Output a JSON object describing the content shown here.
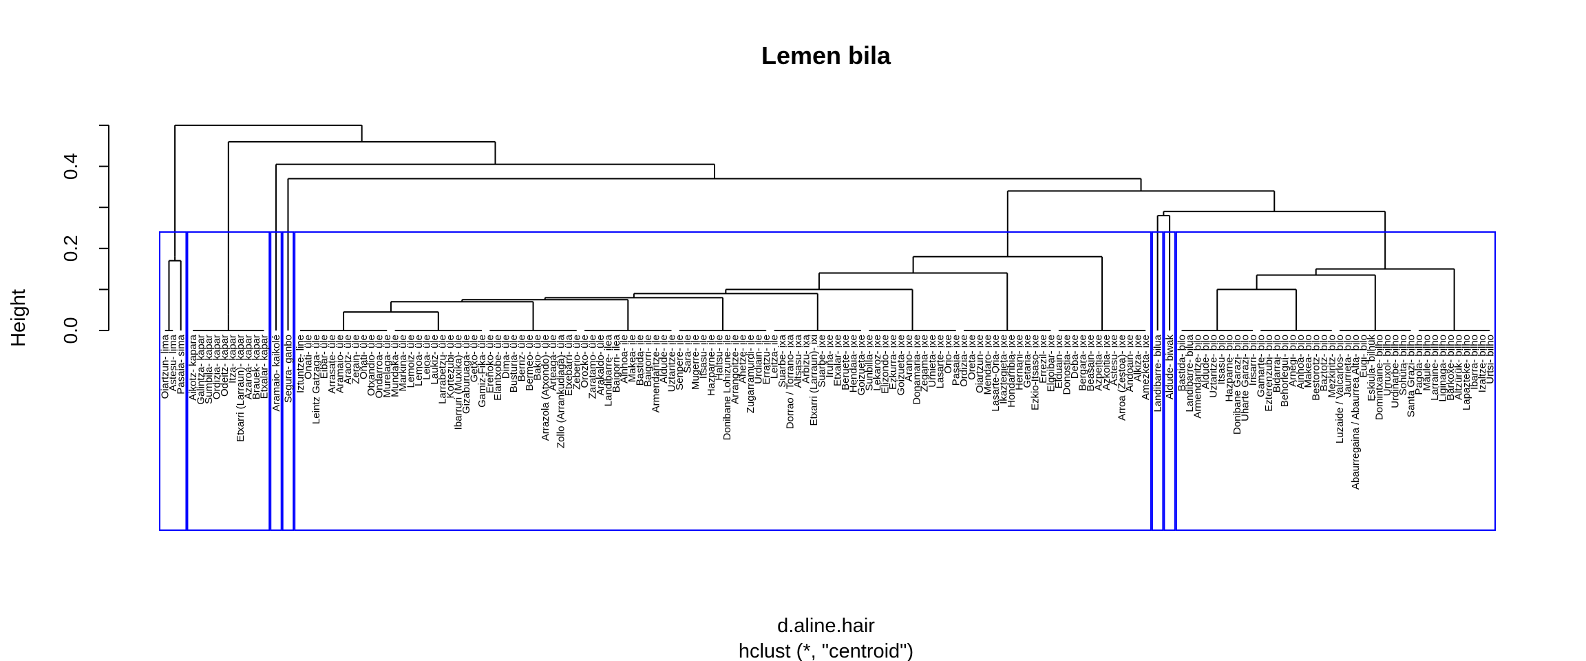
{
  "chart_data": {
    "type": "dendrogram",
    "title": "Lemen bila",
    "xlabel": "d.aline.hair",
    "sublabel": "hclust (*, \"centroid\")",
    "ylabel": "Height",
    "ylim": [
      0,
      0.5
    ],
    "yticks": [
      0.0,
      0.1,
      0.2,
      0.3,
      0.4,
      0.5
    ],
    "ytick_labels": [
      "0.0",
      "",
      "0.2",
      "",
      "0.4",
      ""
    ],
    "cut_height": 0.24,
    "colors": {
      "tree": "#000000",
      "boxes": "#0000ff"
    },
    "groups": [
      {
        "labels": [
          "Oiartzun- lima",
          "Astesu- lima",
          "Pasaia- sima"
        ],
        "merges": [
          0.17,
          0.18
        ]
      },
      {
        "labels": [
          "Aikotz- kapara",
          "Galintza- kapar",
          "Sumbila- kapar",
          "Ordizia- kapar",
          "Odeitz- kapar",
          "Itza- kapar",
          "Etxarri (Larraun)- kapar",
          "Azaroa- kapar",
          "Brauek- kapar",
          "Etxalar- kapar"
        ],
        "merges": [
          0.04
        ]
      },
      {
        "labels": [
          "Aramaio- kaikolé"
        ],
        "merges": []
      },
      {
        "labels": [
          "Segura- ganbo"
        ],
        "merges": []
      },
      {
        "labels": [
          "Iztuntze- line",
          "Onati- üle",
          "Leintz Gatzaga- üle",
          "Eibar- üle",
          "Arrasate- üle",
          "Aramaio- üle",
          "Araotz- üle",
          "Zerain- üle",
          "Oñati- üle",
          "Otxandio- üle",
          "Ondarroa- üle",
          "Murelaga- üle",
          "Mundaka- üle",
          "Markina- üle",
          "Lemoiz- üle",
          "Lemoa- üle",
          "Leioa- üle",
          "Laukiz- üle",
          "Larrabetzu- üle",
          "Kortezubi- üle",
          "Ibarruri (Muxika)- üle",
          "Gizaburuaga- üle",
          "Getxo- üle",
          "Gamiz-Fika- üle",
          "Ereñoko- üle",
          "Elantxobe- üle",
          "Dima- üle",
          "Busturia- üle",
          "Berriz- üle",
          "Bermeo- üle",
          "Bakio- üle",
          "Arrazola (Atxondo)- üle",
          "Arteaga- üle",
          "Zollo (Arrankudiaga)- üla",
          "Etxebarri- üla",
          "Zeberio- üle",
          "Orozko- üle",
          "Zaratamo- üle",
          "Arakaldo- üle",
          "Landibarre- ilea",
          "Baigorri- ilea",
          "Ainhoa- ile",
          "Makea- ile",
          "Bastida- ile",
          "Baigorri- ile",
          "Armendaritze- ile",
          "Aldude- ile",
          "Uztaritze- ile",
          "Senpere- ile",
          "Sara- ile",
          "Mugerre- ile",
          "Itsasu- ile",
          "Hazparne- ile",
          "Haltsu- ile",
          "Donibane Lohizune- ile",
          "Arrangoitze- ile",
          "Ahetze- ile",
          "Zugarramurdi- ile",
          "Urdiain- ile",
          "Erratzu- ile",
          "Leitza- ile",
          "Suarbe- ixa",
          "Dorrao / Torrano- ixa",
          "Altsasu- ixa",
          "Arbizu- ixa",
          "Etxarri (Larraun)- ixi",
          "Suarbe- ixe",
          "Iruña- ixe",
          "Etxalar- ixe",
          "Beruete- ixe",
          "Hendaia- ixe",
          "Goizueta- ixe",
          "Sunbilla- ixe",
          "Lekaroz- ixe",
          "Elizondo- ixe",
          "Ezkurra- ixe",
          "Goizueta- ixe",
          "Arano- ixe",
          "Donamaria- ixe",
          "Zegama- ixe",
          "Urnieta- ixe",
          "Lasarte- ixe",
          "Orio- ixe",
          "Pasaia- ixe",
          "Ordizia- ixe",
          "Oreta- ixe",
          "Oiartzun- ixe",
          "Mendaro- ixe",
          "Lasarte-Oria- ixe",
          "Ikaztegieta- ixe",
          "Hondarribia- ixe",
          "Hernani- ixe",
          "Getaria- ixe",
          "Ezkio-Itsaso- ixe",
          "Errezil- ixe",
          "Elgoibar- ixe",
          "Elduain- ixe",
          "Donostia- ixe",
          "Deba- ixe",
          "Bergara- ixe",
          "Beasain- ixe",
          "Azpeitia- ixe",
          "Azkoitia- ixe",
          "Astesu- ixe",
          "Arroa (Zestoa)- ixe",
          "Andoain- ixe",
          "Alkiza- ixe",
          "Amezketa- ixe"
        ],
        "merges": [
          0.23,
          0.18,
          0.14,
          0.1,
          0.09,
          0.08,
          0.075,
          0.07,
          0.045
        ]
      },
      {
        "labels": [
          "Landibarre- bilua"
        ],
        "merges": []
      },
      {
        "labels": [
          "Aldude- biwak"
        ],
        "merges": []
      },
      {
        "labels": [
          "Bastida- bilo",
          "Landibarre- bilua",
          "Armendaritze- bilo",
          "Aldude- bilo",
          "Uztaritze- bilo",
          "Itsasu- bilo",
          "Hazparne- bilo",
          "Donibane Garazi- bilo",
          "Uharte Garazi- bilo",
          "Irisarri- bilo",
          "Gamarte- bilo",
          "Ezterenzubi- bilo",
          "Bidarrai- bilo",
          "Behorleguí- bilo",
          "Arnegi- bilo",
          "Ainhoa- bilo",
          "Makea- bilo",
          "Bestorotz- bilo",
          "Baztotz- bilo",
          "Mezkiritz- bilo",
          "Luzaide / Valcarlos- bilo",
          "Jaurrieta- bilo",
          "Abaurregaina / Abaurrea Alta- bilo",
          "Eugi- bilo",
          "Eskiula- bilhük",
          "Domintxaine- bilho",
          "Urruxol- bilho",
          "Urdiñarbe- bilho",
          "Sohüta- bilho",
          "Santa Grazi- bilho",
          "Pagola- bilho",
          "Maule- bilho",
          "Larraine- bilho",
          "Liginaga- bilho",
          "Barkoxe- bilho",
          "Altzürük- bilho",
          "Lapazteke- bilho",
          "Ibarra- bilho",
          "Izaltze- bilho",
          "Urtsi- bilho"
        ],
        "merges": [
          0.25,
          0.15,
          0.135,
          0.1
        ]
      }
    ],
    "top_merges": [
      0.5,
      0.46,
      0.405,
      0.37,
      0.34,
      0.29,
      0.28
    ]
  }
}
